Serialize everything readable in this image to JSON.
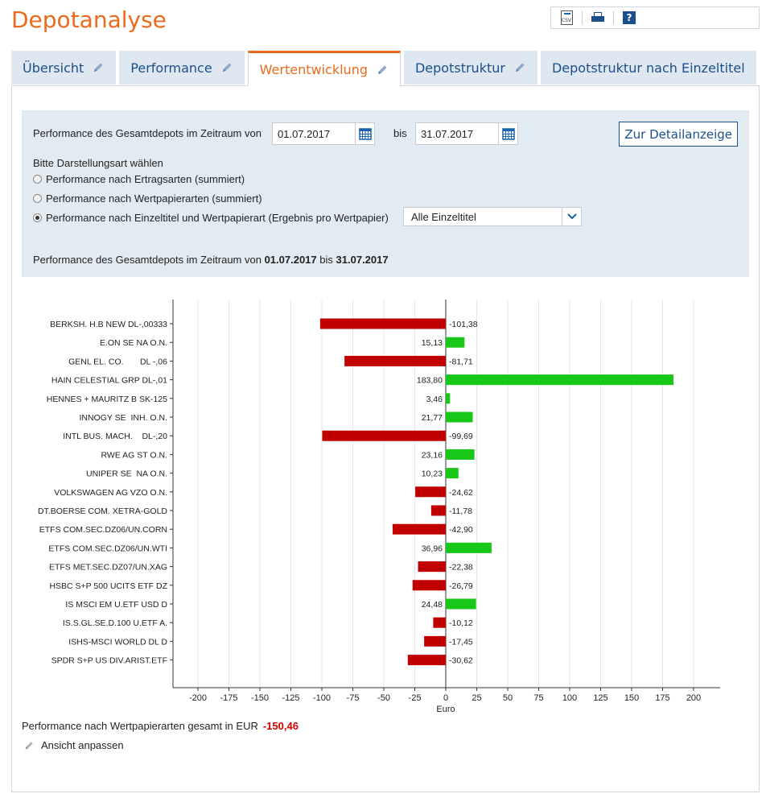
{
  "page": {
    "title": "Depotanalyse"
  },
  "toolbar": {
    "csv_label": "CSV",
    "icons": [
      "csv-export-icon",
      "print-icon",
      "help-icon"
    ],
    "help_label": "?"
  },
  "tabs": [
    {
      "label": "Übersicht",
      "active": false,
      "editable": true
    },
    {
      "label": "Performance",
      "active": false,
      "editable": true
    },
    {
      "label": "Wertentwicklung",
      "active": true,
      "editable": true
    },
    {
      "label": "Depotstruktur",
      "active": false,
      "editable": true
    },
    {
      "label": "Depotstruktur nach Einzeltitel",
      "active": false,
      "editable": false
    }
  ],
  "filter": {
    "period_label": "Performance des Gesamtdepots im Zeitraum von",
    "from_date": "01.07.2017",
    "to_label": "bis",
    "to_date": "31.07.2017",
    "detail_button": "Zur Detailanzeige",
    "mode_label": "Bitte Darstellungsart wählen",
    "options": [
      {
        "label": "Performance nach Ertragsarten (summiert)",
        "selected": false
      },
      {
        "label": "Performance nach Wertpapierarten (summiert)",
        "selected": false
      },
      {
        "label": "Performance nach Einzeltitel und Wertpapierart (Ergebnis pro Wertpapier)",
        "selected": true
      }
    ],
    "select_value": "Alle Einzeltitel",
    "summary_prefix": "Performance des Gesamtdepots im Zeitraum von",
    "summary_from": "01.07.2017",
    "summary_mid": "bis",
    "summary_to": "31.07.2017"
  },
  "chart_data": {
    "type": "bar",
    "orientation": "horizontal",
    "xlabel": "Euro",
    "xlim": [
      -220,
      220
    ],
    "xticks": [
      -200,
      -175,
      -150,
      -125,
      -100,
      -75,
      -50,
      -25,
      0,
      25,
      50,
      75,
      100,
      125,
      150,
      175,
      200
    ],
    "grid": true,
    "categories": [
      "BERKSH. H.B NEW DL-,00333",
      "E.ON SE NA O.N.",
      "GENL EL. CO.       DL -,06",
      "HAIN CELESTIAL GRP DL-,01",
      "HENNES + MAURITZ B SK-125",
      "INNOGY SE  INH. O.N.",
      "INTL BUS. MACH.    DL-,20",
      "RWE AG ST O.N.",
      "UNIPER SE  NA O.N.",
      "VOLKSWAGEN AG VZO O.N.",
      "DT.BOERSE COM. XETRA-GOLD",
      "ETFS COM.SEC.DZ06/UN.CORN",
      "ETFS COM.SEC.DZ06/UN.WTI",
      "ETFS MET.SEC.DZ07/UN.XAG",
      "HSBC S+P 500 UCITS ETF DZ",
      "IS MSCI EM U.ETF USD D",
      "IS.S.GL.SE.D.100 U.ETF A.",
      "ISHS-MSCI WORLD DL D",
      "SPDR S+P US DIV.ARIST.ETF"
    ],
    "values": [
      -101.38,
      15.13,
      -81.71,
      183.8,
      3.46,
      21.77,
      -99.69,
      23.16,
      10.23,
      -24.62,
      -11.78,
      -42.9,
      36.96,
      -22.38,
      -26.79,
      24.48,
      -10.12,
      -17.45,
      -30.62
    ],
    "value_labels": [
      "-101,38",
      "15,13",
      "-81,71",
      "183,80",
      "3,46",
      "21,77",
      "-99,69",
      "23,16",
      "10,23",
      "-24,62",
      "-11,78",
      "-42,90",
      "36,96",
      "-22,38",
      "-26,79",
      "24,48",
      "-10,12",
      "-17,45",
      "-30,62"
    ],
    "colors": {
      "positive": "#19c719",
      "negative": "#c00000"
    }
  },
  "summary": {
    "label": "Performance nach Wertpapierarten gesamt in EUR",
    "value": "-150,46"
  },
  "adjust_view": {
    "label": "Ansicht anpassen"
  }
}
